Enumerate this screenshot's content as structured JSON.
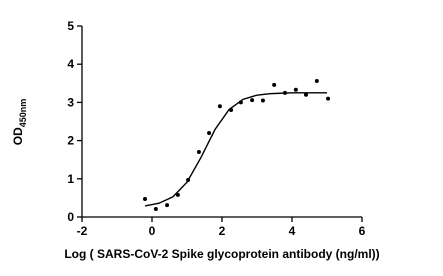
{
  "chart_data": {
    "type": "scatter",
    "x_label": "Log ( SARS-CoV-2 Spike glycoprotein antibody (ng/ml))",
    "y_label": "OD",
    "y_label_sub": "450nm",
    "x": [
      -0.2,
      0.11,
      0.43,
      0.74,
      1.03,
      1.34,
      1.63,
      1.94,
      2.26,
      2.54,
      2.86,
      3.17,
      3.49,
      3.8,
      4.11,
      4.4,
      4.71,
      5.03
    ],
    "series": [
      {
        "color": "#000000",
        "values": [
          0.47,
          0.21,
          0.31,
          0.58,
          0.97,
          1.7,
          2.2,
          2.9,
          2.8,
          3.0,
          3.06,
          3.05,
          3.46,
          3.25,
          3.33,
          3.2,
          3.56,
          3.1
        ]
      }
    ],
    "fit": {
      "x": [
        -0.2,
        0.2,
        0.6,
        1.0,
        1.4,
        1.8,
        2.2,
        2.6,
        3.0,
        3.4,
        4.0,
        5.0
      ],
      "values": [
        0.29,
        0.36,
        0.53,
        0.91,
        1.56,
        2.29,
        2.81,
        3.08,
        3.19,
        3.23,
        3.25,
        3.25
      ]
    },
    "xlim": [
      -2,
      6
    ],
    "xticks": [
      -2,
      0,
      2,
      4,
      6
    ],
    "ylim": [
      0,
      5
    ],
    "yticks": [
      0,
      1,
      2,
      3,
      4,
      5
    ]
  }
}
